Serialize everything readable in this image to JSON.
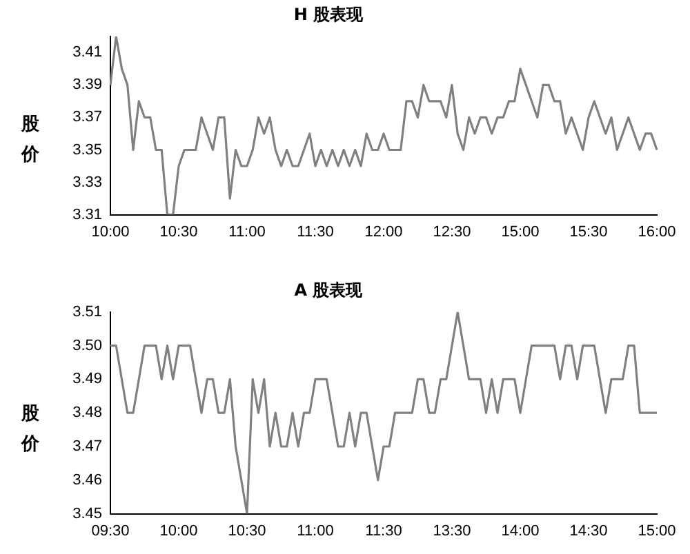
{
  "chart_data": [
    {
      "type": "line",
      "title": "H 股表现",
      "ylabel": "股价",
      "color": "#808080",
      "grid": false,
      "legend": false,
      "marker": "none",
      "line_style": "solid",
      "categories": [
        "10:00",
        null,
        null,
        null,
        null,
        null,
        null,
        null,
        null,
        null,
        null,
        null,
        "10:30",
        null,
        null,
        null,
        null,
        null,
        null,
        null,
        null,
        null,
        null,
        null,
        "11:00",
        null,
        null,
        null,
        null,
        null,
        null,
        null,
        null,
        null,
        null,
        null,
        "11:30",
        null,
        null,
        null,
        null,
        null,
        null,
        null,
        null,
        null,
        null,
        null,
        "12:00",
        null,
        null,
        null,
        null,
        null,
        null,
        null,
        null,
        null,
        null,
        null,
        "12:30",
        null,
        null,
        null,
        null,
        null,
        null,
        null,
        null,
        null,
        null,
        null,
        "15:00",
        null,
        null,
        null,
        null,
        null,
        null,
        null,
        null,
        null,
        null,
        null,
        "15:30",
        null,
        null,
        null,
        null,
        null,
        null,
        null,
        null,
        null,
        null,
        null,
        "16:00"
      ],
      "values": [
        3.39,
        3.42,
        3.4,
        3.39,
        3.35,
        3.38,
        3.37,
        3.37,
        3.35,
        3.35,
        3.31,
        3.31,
        3.34,
        3.35,
        3.35,
        3.35,
        3.37,
        3.36,
        3.35,
        3.37,
        3.37,
        3.32,
        3.35,
        3.34,
        3.34,
        3.35,
        3.37,
        3.36,
        3.37,
        3.35,
        3.34,
        3.35,
        3.34,
        3.34,
        3.35,
        3.36,
        3.34,
        3.35,
        3.34,
        3.35,
        3.34,
        3.35,
        3.34,
        3.35,
        3.34,
        3.36,
        3.35,
        3.35,
        3.36,
        3.35,
        3.35,
        3.35,
        3.38,
        3.38,
        3.37,
        3.39,
        3.38,
        3.38,
        3.38,
        3.37,
        3.39,
        3.36,
        3.35,
        3.37,
        3.36,
        3.37,
        3.37,
        3.36,
        3.37,
        3.37,
        3.38,
        3.38,
        3.4,
        3.39,
        3.38,
        3.37,
        3.39,
        3.39,
        3.38,
        3.38,
        3.36,
        3.37,
        3.36,
        3.35,
        3.37,
        3.38,
        3.37,
        3.36,
        3.37,
        3.35,
        3.36,
        3.37,
        3.36,
        3.35,
        3.36,
        3.36,
        3.35
      ],
      "ylim": [
        3.31,
        3.42
      ],
      "yticks": [
        3.31,
        3.33,
        3.35,
        3.37,
        3.39,
        3.41
      ]
    },
    {
      "type": "line",
      "title": "A 股表现",
      "ylabel": "股价",
      "color": "#808080",
      "grid": false,
      "legend": false,
      "marker": "none",
      "line_style": "solid",
      "categories": [
        "09:30",
        null,
        null,
        null,
        null,
        null,
        null,
        null,
        null,
        null,
        null,
        null,
        "10:00",
        null,
        null,
        null,
        null,
        null,
        null,
        null,
        null,
        null,
        null,
        null,
        "10:30",
        null,
        null,
        null,
        null,
        null,
        null,
        null,
        null,
        null,
        null,
        null,
        "11:00",
        null,
        null,
        null,
        null,
        null,
        null,
        null,
        null,
        null,
        null,
        null,
        "11:30",
        null,
        null,
        null,
        null,
        null,
        null,
        null,
        null,
        null,
        null,
        null,
        "13:30",
        null,
        null,
        null,
        null,
        null,
        null,
        null,
        null,
        null,
        null,
        null,
        "14:00",
        null,
        null,
        null,
        null,
        null,
        null,
        null,
        null,
        null,
        null,
        null,
        "14:30",
        null,
        null,
        null,
        null,
        null,
        null,
        null,
        null,
        null,
        null,
        null,
        "15:00"
      ],
      "values": [
        3.5,
        3.5,
        3.49,
        3.48,
        3.48,
        3.49,
        3.5,
        3.5,
        3.5,
        3.49,
        3.5,
        3.49,
        3.5,
        3.5,
        3.5,
        3.49,
        3.48,
        3.49,
        3.49,
        3.48,
        3.48,
        3.49,
        3.47,
        3.46,
        3.45,
        3.49,
        3.48,
        3.49,
        3.47,
        3.48,
        3.47,
        3.47,
        3.48,
        3.47,
        3.48,
        3.48,
        3.49,
        3.49,
        3.49,
        3.48,
        3.47,
        3.47,
        3.48,
        3.47,
        3.48,
        3.48,
        3.47,
        3.46,
        3.47,
        3.47,
        3.48,
        3.48,
        3.48,
        3.48,
        3.49,
        3.49,
        3.48,
        3.48,
        3.49,
        3.49,
        3.5,
        3.51,
        3.5,
        3.49,
        3.49,
        3.49,
        3.48,
        3.49,
        3.48,
        3.49,
        3.49,
        3.49,
        3.48,
        3.49,
        3.5,
        3.5,
        3.5,
        3.5,
        3.5,
        3.49,
        3.5,
        3.5,
        3.49,
        3.5,
        3.5,
        3.5,
        3.49,
        3.48,
        3.49,
        3.49,
        3.49,
        3.5,
        3.5,
        3.48,
        3.48,
        3.48,
        3.48
      ],
      "ylim": [
        3.45,
        3.51
      ],
      "yticks": [
        3.45,
        3.46,
        3.47,
        3.48,
        3.49,
        {
          "value": 3.5,
          "label": "3.50"
        },
        3.51
      ]
    }
  ]
}
